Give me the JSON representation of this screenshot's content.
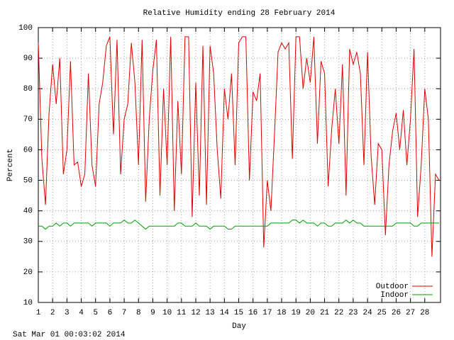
{
  "chart_data": {
    "type": "line",
    "title": "Relative Humidity ending 28 February 2014",
    "x_label": "Day",
    "y_label": "Percent",
    "footer": "Sat Mar 01 00:03:02 2014",
    "x": [
      1,
      1.25,
      1.5,
      1.75,
      2,
      2.25,
      2.5,
      2.75,
      3,
      3.25,
      3.5,
      3.75,
      4,
      4.25,
      4.5,
      4.75,
      5,
      5.25,
      5.5,
      5.75,
      6,
      6.25,
      6.5,
      6.75,
      7,
      7.25,
      7.5,
      7.75,
      8,
      8.25,
      8.5,
      8.75,
      9,
      9.25,
      9.5,
      9.75,
      10,
      10.25,
      10.5,
      10.75,
      11,
      11.25,
      11.5,
      11.75,
      12,
      12.25,
      12.5,
      12.75,
      13,
      13.25,
      13.5,
      13.75,
      14,
      14.25,
      14.5,
      14.75,
      15,
      15.25,
      15.5,
      15.75,
      16,
      16.25,
      16.5,
      16.75,
      17,
      17.25,
      17.5,
      17.75,
      18,
      18.25,
      18.5,
      18.75,
      19,
      19.25,
      19.5,
      19.75,
      20,
      20.25,
      20.5,
      20.75,
      21,
      21.25,
      21.5,
      21.75,
      22,
      22.25,
      22.5,
      22.75,
      23,
      23.25,
      23.5,
      23.75,
      24,
      24.25,
      24.5,
      24.75,
      25,
      25.25,
      25.5,
      25.75,
      26,
      26.25,
      26.5,
      26.75,
      27,
      27.25,
      27.5,
      27.75,
      28,
      28.25,
      28.5,
      28.75,
      29
    ],
    "series": [
      {
        "name": "Outdoor",
        "color": "#e00000",
        "values": [
          95,
          57,
          42,
          72,
          88,
          75,
          90,
          52,
          60,
          89,
          55,
          56,
          48,
          52,
          85,
          55,
          48,
          75,
          82,
          94,
          97,
          65,
          96,
          52,
          70,
          75,
          95,
          82,
          55,
          96,
          43,
          70,
          86,
          96,
          45,
          80,
          55,
          97,
          40,
          76,
          52,
          97,
          97,
          38,
          82,
          45,
          94,
          42,
          94,
          85,
          60,
          44,
          80,
          70,
          85,
          55,
          95,
          97,
          97,
          50,
          79,
          76,
          85,
          28,
          50,
          40,
          65,
          92,
          95,
          93,
          95,
          57,
          97,
          97,
          80,
          90,
          82,
          97,
          62,
          89,
          85,
          48,
          67,
          80,
          62,
          88,
          45,
          93,
          88,
          92,
          85,
          55,
          92,
          58,
          42,
          62,
          60,
          32,
          55,
          66,
          72,
          60,
          73,
          55,
          70,
          93,
          38,
          55,
          80,
          70,
          25,
          52,
          50
        ]
      },
      {
        "name": "Indoor",
        "color": "#00a000",
        "values": [
          35,
          35,
          34,
          35,
          35,
          36,
          35,
          36,
          36,
          35,
          36,
          36,
          36,
          36,
          36,
          35,
          36,
          36,
          36,
          36,
          35,
          36,
          36,
          36,
          37,
          36,
          36,
          37,
          36,
          35,
          34,
          35,
          35,
          35,
          35,
          35,
          35,
          35,
          35,
          36,
          36,
          35,
          35,
          35,
          36,
          35,
          35,
          35,
          34,
          35,
          35,
          35,
          35,
          34,
          34,
          35,
          35,
          35,
          35,
          35,
          35,
          35,
          35,
          35,
          35,
          36,
          36,
          36,
          36,
          36,
          36,
          37,
          37,
          36,
          37,
          36,
          36,
          36,
          35,
          36,
          36,
          35,
          35,
          36,
          36,
          36,
          37,
          36,
          37,
          36,
          36,
          35,
          35,
          35,
          35,
          35,
          35,
          35,
          35,
          35,
          36,
          36,
          36,
          36,
          36,
          35,
          35,
          36,
          36,
          36,
          36,
          36,
          36
        ]
      }
    ],
    "xlim": [
      1,
      29.1
    ],
    "ylim": [
      10,
      100
    ],
    "xticks": [
      1,
      2,
      3,
      4,
      5,
      6,
      7,
      8,
      9,
      10,
      11,
      12,
      13,
      14,
      15,
      16,
      17,
      18,
      19,
      20,
      21,
      22,
      23,
      24,
      25,
      26,
      27,
      28
    ],
    "yticks": [
      10,
      20,
      30,
      40,
      50,
      60,
      70,
      80,
      90,
      100
    ],
    "grid": true,
    "legend": "lower right"
  }
}
